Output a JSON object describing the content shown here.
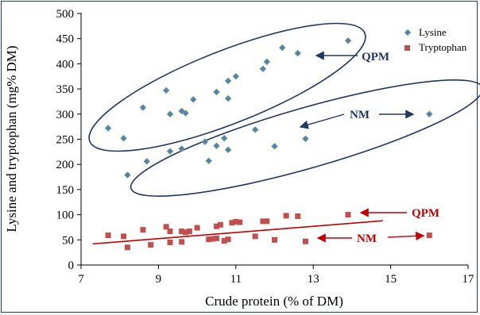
{
  "chart_data": {
    "type": "scatter",
    "xlabel": "Crude protein (% of DM)",
    "ylabel": "Lysine and tryptophan (mg% DM)",
    "xlim": [
      7,
      17
    ],
    "ylim": [
      0,
      500
    ],
    "x_ticks": [
      "7",
      "9",
      "11",
      "13",
      "15",
      "17"
    ],
    "y_ticks": [
      "0",
      "50",
      "100",
      "150",
      "200",
      "250",
      "300",
      "350",
      "400",
      "450",
      "500"
    ],
    "legend_position": "top-right",
    "grid": false,
    "series": [
      {
        "name": "Lysine",
        "color": "#4f81bd",
        "marker": "diamond",
        "points": [
          [
            7.7,
            272
          ],
          [
            8.1,
            252
          ],
          [
            8.6,
            313
          ],
          [
            9.2,
            347
          ],
          [
            9.3,
            300
          ],
          [
            9.6,
            306
          ],
          [
            9.7,
            302
          ],
          [
            9.9,
            329
          ],
          [
            10.5,
            344
          ],
          [
            10.8,
            331
          ],
          [
            10.8,
            366
          ],
          [
            11.0,
            375
          ],
          [
            11.7,
            390
          ],
          [
            11.8,
            404
          ],
          [
            12.2,
            432
          ],
          [
            12.6,
            421
          ],
          [
            13.9,
            446
          ],
          [
            8.2,
            179
          ],
          [
            8.7,
            206
          ],
          [
            9.3,
            226
          ],
          [
            9.6,
            231
          ],
          [
            10.2,
            245
          ],
          [
            10.3,
            207
          ],
          [
            10.5,
            237
          ],
          [
            10.7,
            252
          ],
          [
            10.8,
            229
          ],
          [
            11.5,
            269
          ],
          [
            12.0,
            236
          ],
          [
            12.8,
            251
          ],
          [
            16.0,
            300
          ]
        ]
      },
      {
        "name": "Tryptophan",
        "color": "#c0504d",
        "marker": "square",
        "points": [
          [
            7.7,
            59
          ],
          [
            8.1,
            57
          ],
          [
            8.2,
            35
          ],
          [
            8.6,
            70
          ],
          [
            8.8,
            40
          ],
          [
            9.2,
            76
          ],
          [
            9.3,
            67
          ],
          [
            9.3,
            45
          ],
          [
            9.6,
            46
          ],
          [
            9.6,
            67
          ],
          [
            9.7,
            65
          ],
          [
            9.8,
            67
          ],
          [
            10.0,
            74
          ],
          [
            10.3,
            51
          ],
          [
            10.4,
            52
          ],
          [
            10.5,
            53
          ],
          [
            10.5,
            77
          ],
          [
            10.6,
            80
          ],
          [
            10.7,
            48
          ],
          [
            10.8,
            51
          ],
          [
            10.9,
            84
          ],
          [
            11.0,
            86
          ],
          [
            11.1,
            85
          ],
          [
            11.5,
            57
          ],
          [
            11.7,
            87
          ],
          [
            11.8,
            87
          ],
          [
            12.0,
            50
          ],
          [
            12.3,
            98
          ],
          [
            12.6,
            97
          ],
          [
            12.8,
            47
          ],
          [
            13.9,
            100
          ],
          [
            16.0,
            59
          ]
        ]
      }
    ],
    "trendline": {
      "color": "#c00000",
      "x": [
        7.3,
        14.8
      ],
      "y": [
        42,
        88
      ]
    },
    "ellipses_label_color": "#1f3864",
    "annotations": [
      {
        "text": "QPM",
        "color": "#1f3864",
        "arrow": "left"
      },
      {
        "text": "NM",
        "color": "#1f3864",
        "arrow": "both"
      },
      {
        "text": "QPM",
        "color": "#c00000",
        "arrow": "left"
      },
      {
        "text": "NM",
        "color": "#c00000",
        "arrow": "both"
      }
    ]
  }
}
